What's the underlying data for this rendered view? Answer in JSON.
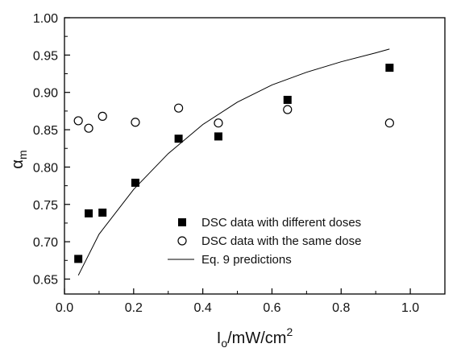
{
  "chart_data": {
    "type": "scatter",
    "xlim": [
      0.0,
      1.1
    ],
    "ylim": [
      0.63,
      1.0
    ],
    "xticks": [
      "0.0",
      "0.2",
      "0.4",
      "0.6",
      "0.8",
      "1.0"
    ],
    "yticks": [
      "0.65",
      "0.70",
      "0.75",
      "0.80",
      "0.85",
      "0.90",
      "0.95",
      "1.00"
    ],
    "xlabel": {
      "main": "I",
      "sub": "o",
      "rest": "/mW/cm",
      "sup": "2"
    },
    "ylabel": {
      "main": "α",
      "sub": "m"
    },
    "legend_position": "bottom-right",
    "series": [
      {
        "name": "DSC data with different doses",
        "kind": "scatter",
        "marker": "filled-square",
        "color": "#000000",
        "x": [
          0.04,
          0.07,
          0.11,
          0.205,
          0.33,
          0.445,
          0.645,
          0.94
        ],
        "y": [
          0.677,
          0.738,
          0.739,
          0.779,
          0.838,
          0.841,
          0.89,
          0.933
        ]
      },
      {
        "name": "DSC data with the same dose",
        "kind": "scatter",
        "marker": "open-circle",
        "color": "#000000",
        "x": [
          0.04,
          0.07,
          0.11,
          0.205,
          0.33,
          0.445,
          0.645,
          0.94
        ],
        "y": [
          0.862,
          0.852,
          0.868,
          0.86,
          0.879,
          0.859,
          0.877,
          0.859
        ]
      },
      {
        "name": "Eq. 9 predictions",
        "kind": "line",
        "color": "#000000",
        "x": [
          0.04,
          0.1,
          0.2,
          0.3,
          0.4,
          0.5,
          0.6,
          0.7,
          0.8,
          0.9,
          0.94
        ],
        "y": [
          0.655,
          0.71,
          0.77,
          0.818,
          0.857,
          0.887,
          0.91,
          0.927,
          0.941,
          0.953,
          0.958
        ]
      }
    ]
  }
}
